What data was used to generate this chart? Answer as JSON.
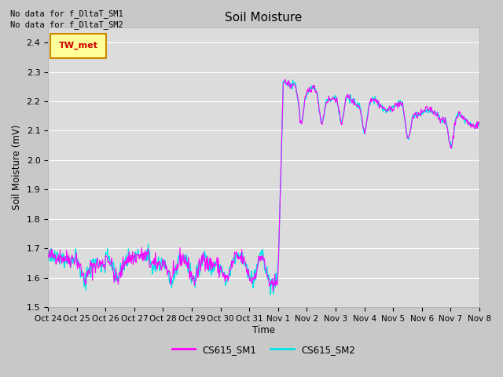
{
  "title": "Soil Moisture",
  "ylabel": "Soil Moisture (mV)",
  "xlabel": "Time",
  "ylim": [
    1.5,
    2.45
  ],
  "yticks": [
    1.5,
    1.6,
    1.7,
    1.8,
    1.9,
    2.0,
    2.1,
    2.2,
    2.3,
    2.4
  ],
  "color_sm1": "#ff00ff",
  "color_sm2": "#00e5e5",
  "color_twmet": "#cc0000",
  "color_twmet_bg": "#ffff99",
  "color_twmet_border": "#cc8800",
  "legend_sm1": "CS615_SM1",
  "legend_sm2": "CS615_SM2",
  "text_nodata1": "No data for f_DltaT_SM1",
  "text_nodata2": "No data for f_DltaT_SM2",
  "twmet_label": "TW_met",
  "fig_facecolor": "#c8c8c8",
  "axes_facecolor": "#dcdcdc",
  "tick_labels": [
    "Oct 24",
    "Oct 25",
    "Oct 26",
    "Oct 27",
    "Oct 28",
    "Oct 29",
    "Oct 30",
    "Oct 31",
    "Nov 1",
    "Nov 2",
    "Nov 3",
    "Nov 4",
    "Nov 5",
    "Nov 6",
    "Nov 7",
    "Nov 8"
  ],
  "linewidth_sm1": 0.8,
  "linewidth_sm2": 1.0
}
